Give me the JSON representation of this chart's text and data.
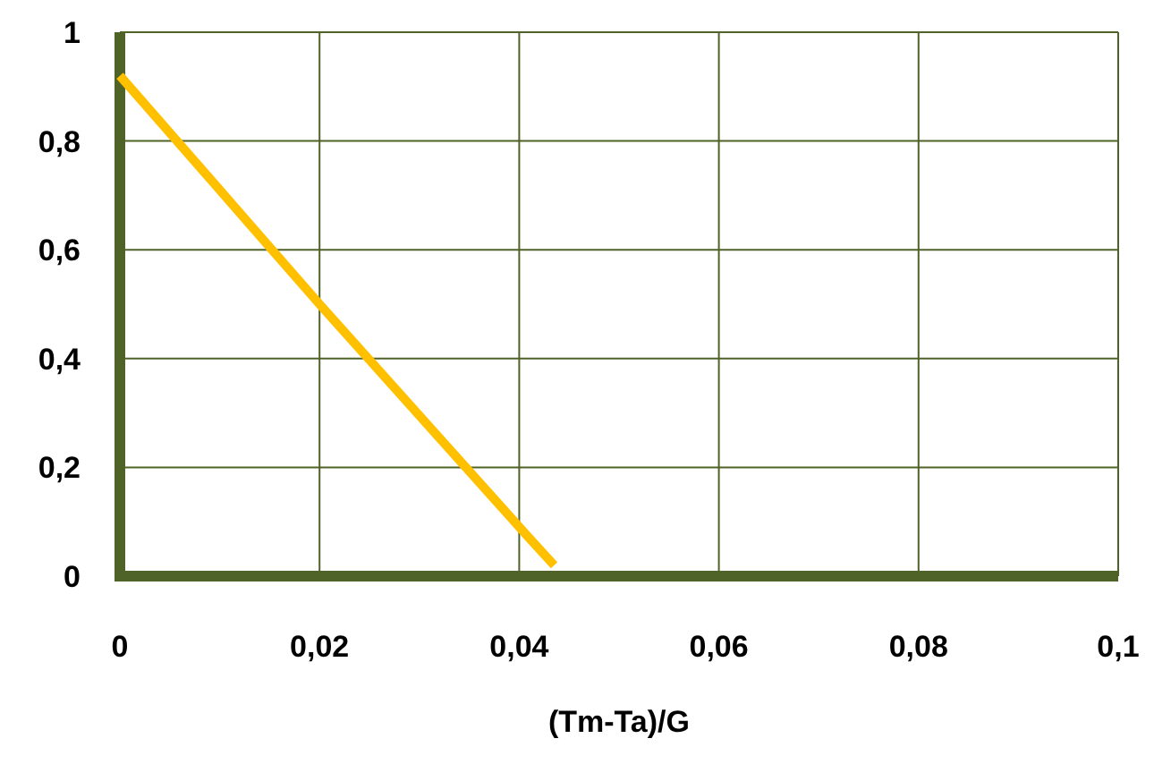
{
  "chart_data": {
    "type": "line",
    "xlabel": "(Tm-Ta)/G",
    "series": [
      {
        "color": "#ffc000",
        "x": [
          0,
          0.02,
          0.041,
          0.0435
        ],
        "values": [
          0.92,
          0.5,
          0.07,
          0.02
        ]
      }
    ],
    "xlim": [
      0,
      0.1
    ],
    "xticks": [
      0,
      {
        "value": 0.02,
        "label": "0,02"
      },
      {
        "value": 0.04,
        "label": "0,04"
      },
      {
        "value": 0.06,
        "label": "0,06"
      },
      {
        "value": 0.08,
        "label": "0,08"
      },
      {
        "value": 0.1,
        "label": "0,1"
      }
    ],
    "ylim": [
      0,
      1
    ],
    "yticks": [
      0,
      {
        "value": 0.2,
        "label": "0,2"
      },
      {
        "value": 0.4,
        "label": "0,4"
      },
      {
        "value": 0.6,
        "label": "0,6"
      },
      {
        "value": 0.8,
        "label": "0,8"
      },
      1
    ],
    "grid": true,
    "marker": "none",
    "line_style": "solid"
  }
}
